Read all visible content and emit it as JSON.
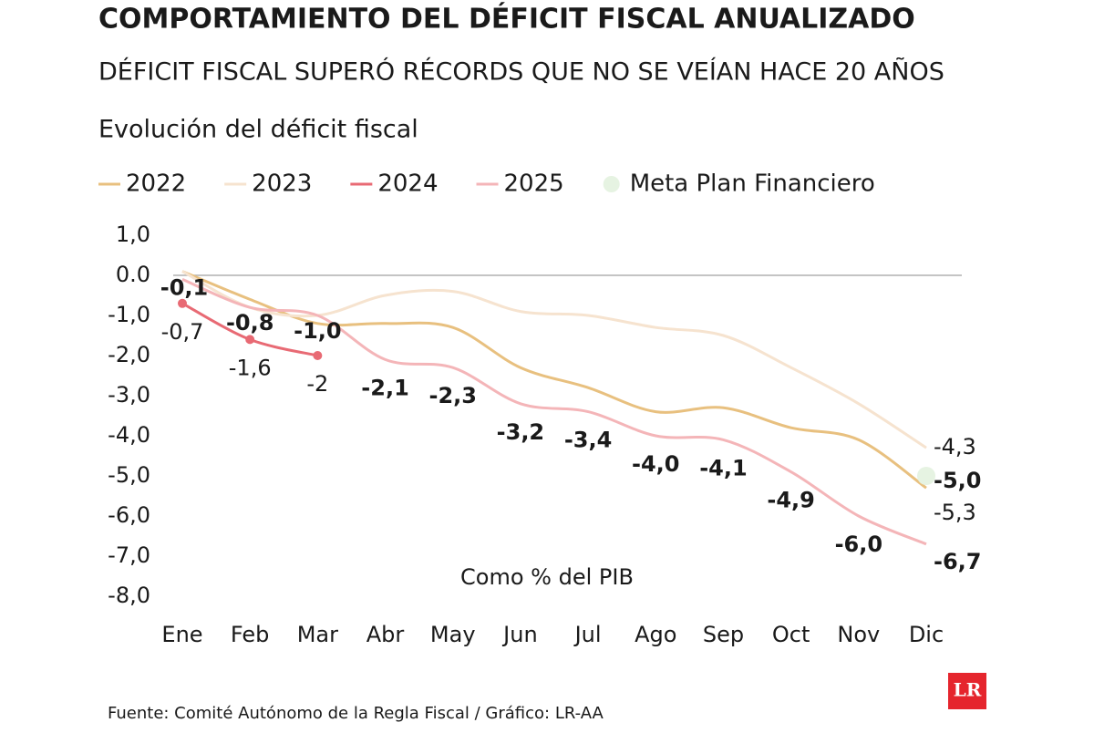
{
  "chart_data": {
    "type": "line",
    "title": "COMPORTAMIENTO DEL DÉFICIT FISCAL ANUALIZADO",
    "subtitle": "DÉFICIT FISCAL SUPERÓ RÉCORDS QUE NO SE VEÍAN HACE 20 AÑOS",
    "chart_title": "Evolución del déficit fiscal",
    "annotation": "Como % del PIB",
    "source": "Fuente: Comité Autónomo de la Regla Fiscal / Gráfico: LR-AA",
    "logo": "LR",
    "categories": [
      "Ene",
      "Feb",
      "Mar",
      "Abr",
      "May",
      "Jun",
      "Jul",
      "Ago",
      "Sep",
      "Oct",
      "Nov",
      "Dic"
    ],
    "ylim": [
      -8,
      1
    ],
    "yticks": [
      {
        "value": 1,
        "label": "1,0"
      },
      {
        "value": 0,
        "label": "0.0"
      },
      {
        "value": -1,
        "label": "-1,0"
      },
      {
        "value": -2,
        "label": "-2,0"
      },
      {
        "value": -3,
        "label": "-3,0"
      },
      {
        "value": -4,
        "label": "-4,0"
      },
      {
        "value": -5,
        "label": "-5,0"
      },
      {
        "value": -6,
        "label": "-6,0"
      },
      {
        "value": -7,
        "label": "-7,0"
      },
      {
        "value": -8,
        "label": "-8,0"
      }
    ],
    "series": [
      {
        "name": "2022",
        "color": "#e8c07f",
        "values": [
          0.1,
          -0.6,
          -1.2,
          -1.2,
          -1.3,
          -2.3,
          -2.8,
          -3.4,
          -3.3,
          -3.8,
          -4.1,
          -5.3
        ],
        "value_labels": [
          null,
          null,
          null,
          null,
          null,
          null,
          null,
          null,
          null,
          null,
          null,
          "-5,3"
        ]
      },
      {
        "name": "2023",
        "color": "#f6e3cf",
        "values": [
          0.1,
          -0.8,
          -1.0,
          -0.5,
          -0.4,
          -0.9,
          -1.0,
          -1.3,
          -1.5,
          -2.3,
          -3.2,
          -4.3
        ],
        "value_labels": [
          null,
          null,
          null,
          null,
          null,
          null,
          null,
          null,
          null,
          null,
          null,
          "-4,3"
        ]
      },
      {
        "name": "2024",
        "color": "#e86a74",
        "values": [
          -0.7,
          -1.6,
          -2.0,
          null,
          null,
          null,
          null,
          null,
          null,
          null,
          null,
          null
        ],
        "value_labels": [
          "-0,7",
          "-1,6",
          "-2",
          null,
          null,
          null,
          null,
          null,
          null,
          null,
          null,
          null
        ]
      },
      {
        "name": "2025",
        "color": "#f4b5b8",
        "values": [
          -0.1,
          -0.8,
          -1.0,
          -2.1,
          -2.3,
          -3.2,
          -3.4,
          -4.0,
          -4.1,
          -4.9,
          -6.0,
          -6.7
        ],
        "value_labels": [
          "-0,1",
          "-0,8",
          "-1,0",
          "-2,1",
          "-2,3",
          "-3,2",
          "-3,4",
          "-4,0",
          "-4,1",
          "-4,9",
          "-6,0",
          "-6,7"
        ]
      },
      {
        "name": "Meta Plan Financiero",
        "color": "#e6f3e2",
        "marker": "point",
        "values": [
          null,
          null,
          null,
          null,
          null,
          null,
          null,
          null,
          null,
          null,
          null,
          -5.0
        ],
        "value_labels": [
          null,
          null,
          null,
          null,
          null,
          null,
          null,
          null,
          null,
          null,
          null,
          "-5,0"
        ]
      }
    ]
  }
}
